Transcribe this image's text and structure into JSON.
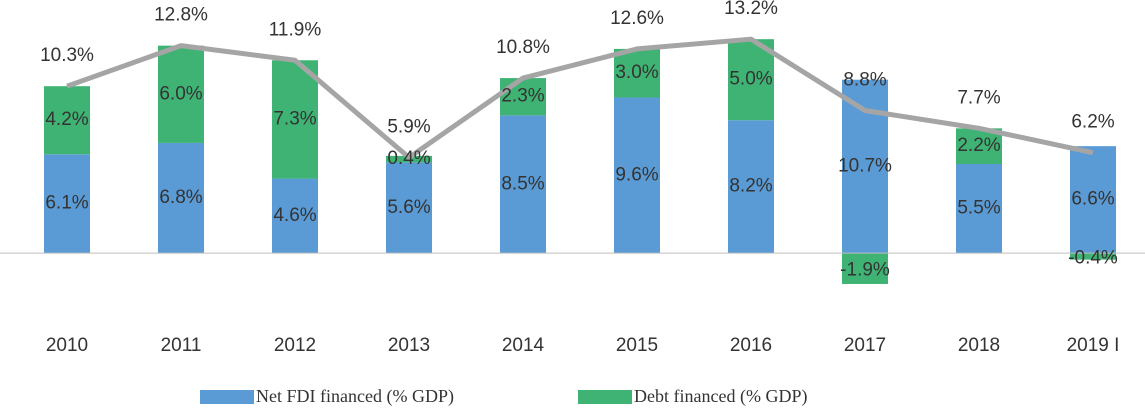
{
  "chart_data": {
    "type": "bar",
    "categories": [
      "2010",
      "2011",
      "2012",
      "2013",
      "2014",
      "2015",
      "2016",
      "2017",
      "2018",
      "2019 I"
    ],
    "series": [
      {
        "name": "Net FDI financed (% GDP)",
        "color": "#5b9bd5",
        "stack": true,
        "values": [
          6.1,
          6.8,
          4.6,
          5.6,
          8.5,
          9.6,
          8.2,
          10.7,
          5.5,
          6.6
        ],
        "value_labels": [
          "6.1%",
          "6.8%",
          "4.6%",
          "5.6%",
          "8.5%",
          "9.6%",
          "8.2%",
          "10.7%",
          "5.5%",
          "6.6%"
        ]
      },
      {
        "name": "Debt financed (% GDP)",
        "color": "#3fb373",
        "stack": true,
        "values": [
          4.2,
          6.0,
          7.3,
          0.4,
          2.3,
          3.0,
          5.0,
          -1.9,
          2.2,
          -0.4
        ],
        "value_labels": [
          "4.2%",
          "6.0%",
          "7.3%",
          "0.4%",
          "2.3%",
          "3.0%",
          "5.0%",
          "-1.9%",
          "2.2%",
          "-0.4%"
        ]
      },
      {
        "type": "line",
        "color": "#a5a5a5",
        "values": [
          10.3,
          12.8,
          11.9,
          5.9,
          10.8,
          12.6,
          13.2,
          8.8,
          7.7,
          6.2
        ],
        "value_labels": [
          "10.3%",
          "12.8%",
          "11.9%",
          "5.9%",
          "10.8%",
          "12.6%",
          "13.2%",
          "8.8%",
          "7.7%",
          "6.2%"
        ]
      }
    ],
    "ylim": [
      -4,
      15
    ],
    "legend": "bottom"
  }
}
